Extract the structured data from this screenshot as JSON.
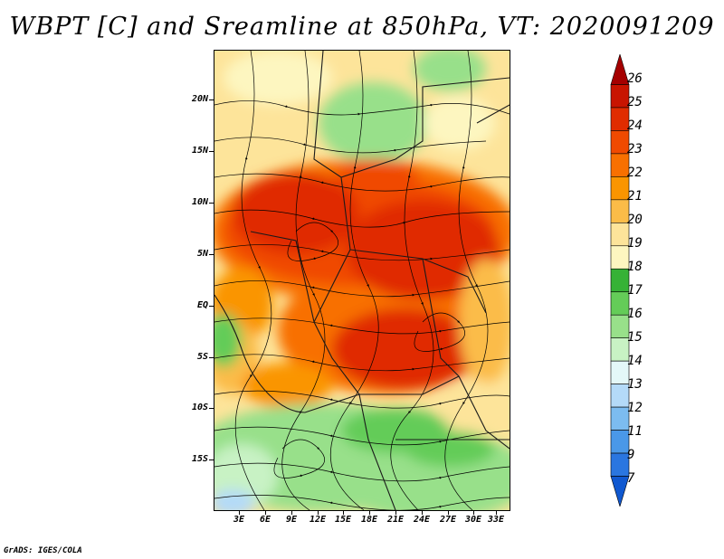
{
  "title": "WBPT [C] and Sreamline at 850hPa, VT: 2020091209",
  "footer": "GrADS: IGES/COLA",
  "map": {
    "lat_labels": [
      "20N",
      "15N",
      "10N",
      "5N",
      "EQ",
      "5S",
      "10S",
      "15S"
    ],
    "lon_labels": [
      "3E",
      "6E",
      "9E",
      "12E",
      "15E",
      "18E",
      "21E",
      "24E",
      "27E",
      "30E",
      "33E"
    ],
    "lat_range": [
      -20,
      24
    ],
    "lon_range": [
      0,
      34
    ]
  },
  "colorbar": {
    "labels": [
      "26",
      "25",
      "24",
      "23",
      "22",
      "21",
      "20",
      "19",
      "18",
      "17",
      "16",
      "15",
      "14",
      "13",
      "12",
      "11",
      "9",
      "7"
    ],
    "colors": [
      "#a50000",
      "#c81400",
      "#e02c00",
      "#f04a00",
      "#f87000",
      "#fa9500",
      "#fbbc48",
      "#fde49a",
      "#fdf6c0",
      "#36b236",
      "#64cc58",
      "#98e08a",
      "#c8f2c4",
      "#e4f8f8",
      "#b4daf8",
      "#7cbcf0",
      "#4a98e8",
      "#2a76e0",
      "#1058d0"
    ]
  }
}
